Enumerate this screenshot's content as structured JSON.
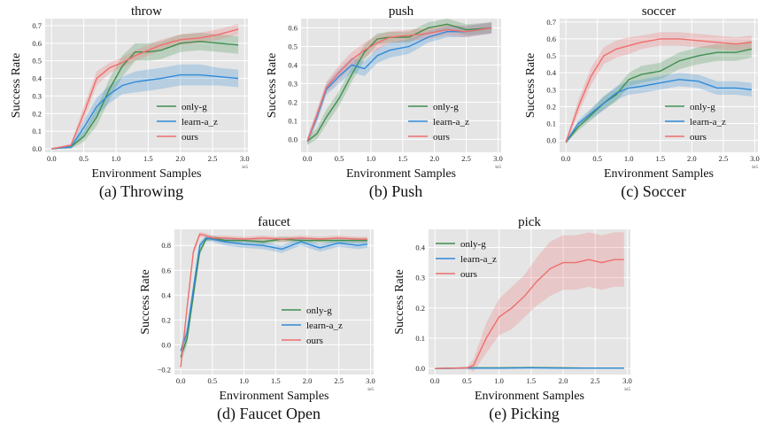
{
  "figure": {
    "colors": {
      "only-g": "#3f8f4f",
      "learn-a_z": "#2f8ad8",
      "ours": "#ef6e6e",
      "plot_bg": "#e5e5e5",
      "grid": "#ffffff"
    }
  },
  "chart_data": [
    {
      "type": "line",
      "title": "throw",
      "caption": "(a) Throwing",
      "xlabel": "Environment Samples",
      "ylabel": "Success Rate",
      "x_multiplier": "1e5",
      "xlim": [
        -0.1,
        3.05
      ],
      "ylim": [
        -0.02,
        0.74
      ],
      "xticks": [
        0.0,
        0.5,
        1.0,
        1.5,
        2.0,
        2.5,
        3.0
      ],
      "yticks": [
        0.0,
        0.1,
        0.2,
        0.3,
        0.4,
        0.5,
        0.6,
        0.7
      ],
      "legend": "lower-right",
      "grid": true,
      "series": [
        {
          "name": "only-g",
          "x": [
            0,
            0.3,
            0.5,
            0.7,
            0.9,
            1.1,
            1.3,
            1.5,
            1.7,
            2.0,
            2.3,
            2.6,
            2.9
          ],
          "y": [
            0,
            0.01,
            0.07,
            0.18,
            0.34,
            0.47,
            0.55,
            0.55,
            0.56,
            0.6,
            0.61,
            0.6,
            0.59
          ],
          "band": [
            0,
            0.01,
            0.03,
            0.05,
            0.06,
            0.06,
            0.05,
            0.05,
            0.05,
            0.05,
            0.05,
            0.05,
            0.05
          ]
        },
        {
          "name": "learn-a_z",
          "x": [
            0,
            0.3,
            0.5,
            0.7,
            0.9,
            1.1,
            1.3,
            1.5,
            1.7,
            2.0,
            2.3,
            2.6,
            2.9
          ],
          "y": [
            0,
            0.01,
            0.12,
            0.24,
            0.31,
            0.36,
            0.38,
            0.39,
            0.4,
            0.42,
            0.42,
            0.41,
            0.4
          ],
          "band": [
            0,
            0.01,
            0.04,
            0.05,
            0.05,
            0.05,
            0.06,
            0.06,
            0.06,
            0.06,
            0.06,
            0.05,
            0.05
          ]
        },
        {
          "name": "ours",
          "x": [
            0,
            0.3,
            0.5,
            0.7,
            0.9,
            1.1,
            1.3,
            1.5,
            1.7,
            2.0,
            2.3,
            2.6,
            2.9
          ],
          "y": [
            0,
            0.02,
            0.2,
            0.4,
            0.46,
            0.49,
            0.53,
            0.56,
            0.59,
            0.62,
            0.63,
            0.65,
            0.68
          ],
          "band": [
            0,
            0.01,
            0.04,
            0.04,
            0.03,
            0.03,
            0.03,
            0.03,
            0.03,
            0.03,
            0.03,
            0.03,
            0.03
          ]
        }
      ]
    },
    {
      "type": "line",
      "title": "push",
      "caption": "(b) Push",
      "xlabel": "Environment Samples",
      "ylabel": "Success Rate",
      "x_multiplier": "1e5",
      "xlim": [
        -0.1,
        3.05
      ],
      "ylim": [
        -0.07,
        0.65
      ],
      "xticks": [
        0.0,
        0.5,
        1.0,
        1.5,
        2.0,
        2.5,
        3.0
      ],
      "yticks": [
        0.0,
        0.1,
        0.2,
        0.3,
        0.4,
        0.5,
        0.6
      ],
      "legend": "lower-right",
      "grid": true,
      "series": [
        {
          "name": "only-g",
          "x": [
            0,
            0.15,
            0.3,
            0.5,
            0.7,
            0.9,
            1.1,
            1.3,
            1.6,
            1.9,
            2.2,
            2.5,
            2.9
          ],
          "y": [
            -0.01,
            0.03,
            0.12,
            0.22,
            0.35,
            0.47,
            0.54,
            0.55,
            0.55,
            0.6,
            0.62,
            0.59,
            0.6
          ],
          "band": [
            0.02,
            0.03,
            0.04,
            0.04,
            0.04,
            0.04,
            0.03,
            0.03,
            0.03,
            0.03,
            0.03,
            0.03,
            0.03
          ]
        },
        {
          "name": "learn-a_z",
          "x": [
            0,
            0.15,
            0.3,
            0.5,
            0.7,
            0.9,
            1.1,
            1.3,
            1.6,
            1.9,
            2.2,
            2.5,
            2.9
          ],
          "y": [
            -0.01,
            0.12,
            0.27,
            0.34,
            0.4,
            0.38,
            0.45,
            0.48,
            0.5,
            0.55,
            0.58,
            0.58,
            0.6
          ],
          "band": [
            0.02,
            0.03,
            0.03,
            0.04,
            0.04,
            0.04,
            0.04,
            0.04,
            0.04,
            0.03,
            0.03,
            0.03,
            0.03
          ]
        },
        {
          "name": "ours",
          "x": [
            0,
            0.15,
            0.3,
            0.5,
            0.7,
            0.9,
            1.1,
            1.3,
            1.6,
            1.9,
            2.2,
            2.5,
            2.9
          ],
          "y": [
            -0.01,
            0.13,
            0.28,
            0.36,
            0.43,
            0.48,
            0.52,
            0.55,
            0.56,
            0.57,
            0.59,
            0.58,
            0.6
          ],
          "band": [
            0.02,
            0.03,
            0.03,
            0.04,
            0.04,
            0.04,
            0.04,
            0.03,
            0.03,
            0.03,
            0.03,
            0.03,
            0.03
          ]
        }
      ]
    },
    {
      "type": "line",
      "title": "soccer",
      "caption": "(c) Soccer",
      "xlabel": "Environment Samples",
      "ylabel": "Success Rate",
      "x_multiplier": "1e5",
      "xlim": [
        -0.1,
        3.05
      ],
      "ylim": [
        -0.07,
        0.72
      ],
      "xticks": [
        0.0,
        0.5,
        1.0,
        1.5,
        2.0,
        2.5,
        3.0
      ],
      "yticks": [
        0.0,
        0.1,
        0.2,
        0.3,
        0.4,
        0.5,
        0.6,
        0.7
      ],
      "legend": "lower-right",
      "grid": true,
      "series": [
        {
          "name": "only-g",
          "x": [
            0,
            0.2,
            0.4,
            0.6,
            0.8,
            1.0,
            1.2,
            1.5,
            1.8,
            2.1,
            2.4,
            2.7,
            2.95
          ],
          "y": [
            -0.01,
            0.08,
            0.15,
            0.22,
            0.27,
            0.36,
            0.39,
            0.41,
            0.47,
            0.5,
            0.52,
            0.52,
            0.54
          ],
          "band": [
            0.01,
            0.02,
            0.03,
            0.04,
            0.04,
            0.04,
            0.05,
            0.05,
            0.05,
            0.05,
            0.05,
            0.05,
            0.05
          ]
        },
        {
          "name": "learn-a_z",
          "x": [
            0,
            0.2,
            0.4,
            0.6,
            0.8,
            1.0,
            1.2,
            1.5,
            1.8,
            2.1,
            2.4,
            2.7,
            2.95
          ],
          "y": [
            -0.01,
            0.1,
            0.16,
            0.22,
            0.28,
            0.31,
            0.32,
            0.34,
            0.36,
            0.35,
            0.31,
            0.31,
            0.3
          ],
          "band": [
            0.01,
            0.02,
            0.03,
            0.04,
            0.04,
            0.04,
            0.04,
            0.04,
            0.04,
            0.04,
            0.04,
            0.04,
            0.04
          ]
        },
        {
          "name": "ours",
          "x": [
            0,
            0.2,
            0.4,
            0.6,
            0.8,
            1.0,
            1.2,
            1.5,
            1.8,
            2.1,
            2.4,
            2.7,
            2.95
          ],
          "y": [
            -0.01,
            0.2,
            0.38,
            0.5,
            0.54,
            0.56,
            0.58,
            0.6,
            0.6,
            0.59,
            0.58,
            0.57,
            0.58
          ],
          "band": [
            0.01,
            0.04,
            0.05,
            0.05,
            0.05,
            0.05,
            0.04,
            0.04,
            0.04,
            0.04,
            0.04,
            0.04,
            0.04
          ]
        }
      ]
    },
    {
      "type": "line",
      "title": "faucet",
      "caption": "(d) Faucet Open",
      "xlabel": "Environment Samples",
      "ylabel": "Success Rate",
      "x_multiplier": "1e5",
      "xlim": [
        -0.1,
        3.05
      ],
      "ylim": [
        -0.24,
        0.93
      ],
      "xticks": [
        0.0,
        0.5,
        1.0,
        1.5,
        2.0,
        2.5,
        3.0
      ],
      "yticks": [
        -0.2,
        0.0,
        0.2,
        0.4,
        0.6,
        0.8
      ],
      "legend": "lower-right",
      "grid": true,
      "series": [
        {
          "name": "only-g",
          "x": [
            0,
            0.1,
            0.2,
            0.3,
            0.4,
            0.5,
            0.7,
            1.0,
            1.3,
            1.6,
            1.9,
            2.2,
            2.5,
            2.8,
            2.95
          ],
          "y": [
            -0.1,
            0.05,
            0.4,
            0.75,
            0.85,
            0.86,
            0.84,
            0.84,
            0.83,
            0.85,
            0.84,
            0.84,
            0.84,
            0.84,
            0.84
          ],
          "band": [
            0.05,
            0.05,
            0.05,
            0.03,
            0.02,
            0.02,
            0.02,
            0.02,
            0.02,
            0.02,
            0.02,
            0.02,
            0.02,
            0.02,
            0.02
          ]
        },
        {
          "name": "learn-a_z",
          "x": [
            0,
            0.1,
            0.2,
            0.3,
            0.4,
            0.5,
            0.7,
            1.0,
            1.3,
            1.6,
            1.9,
            2.2,
            2.5,
            2.8,
            2.95
          ],
          "y": [
            -0.05,
            0.1,
            0.45,
            0.8,
            0.86,
            0.85,
            0.83,
            0.81,
            0.8,
            0.77,
            0.83,
            0.78,
            0.82,
            0.8,
            0.81
          ],
          "band": [
            0.05,
            0.05,
            0.05,
            0.03,
            0.02,
            0.02,
            0.03,
            0.03,
            0.03,
            0.03,
            0.03,
            0.03,
            0.03,
            0.03,
            0.03
          ]
        },
        {
          "name": "ours",
          "x": [
            0,
            0.1,
            0.2,
            0.3,
            0.4,
            0.5,
            0.7,
            1.0,
            1.3,
            1.6,
            1.9,
            2.2,
            2.5,
            2.8,
            2.95
          ],
          "y": [
            -0.18,
            0.3,
            0.75,
            0.89,
            0.88,
            0.86,
            0.86,
            0.85,
            0.86,
            0.85,
            0.86,
            0.85,
            0.86,
            0.85,
            0.85
          ],
          "band": [
            0.04,
            0.04,
            0.03,
            0.02,
            0.02,
            0.02,
            0.02,
            0.02,
            0.02,
            0.02,
            0.02,
            0.02,
            0.02,
            0.02,
            0.02
          ]
        }
      ]
    },
    {
      "type": "line",
      "title": "pick",
      "caption": "(e) Picking",
      "xlabel": "Environment Samples",
      "ylabel": "Success Rate",
      "x_multiplier": "1e5",
      "xlim": [
        -0.1,
        3.05
      ],
      "ylim": [
        -0.02,
        0.46
      ],
      "xticks": [
        0.0,
        0.5,
        1.0,
        1.5,
        2.0,
        2.5,
        3.0
      ],
      "yticks": [
        0.0,
        0.1,
        0.2,
        0.3,
        0.4
      ],
      "legend": "upper-left",
      "grid": true,
      "series": [
        {
          "name": "only-g",
          "x": [
            0,
            0.5,
            1.0,
            1.5,
            2.0,
            2.5,
            2.95
          ],
          "y": [
            0,
            0.002,
            0.002,
            0.003,
            0.002,
            0.001,
            0.001
          ],
          "band": [
            0,
            0.002,
            0.002,
            0.002,
            0.002,
            0.002,
            0.002
          ]
        },
        {
          "name": "learn-a_z",
          "x": [
            0,
            0.5,
            1.0,
            1.5,
            2.0,
            2.5,
            2.95
          ],
          "y": [
            0,
            0.001,
            0.001,
            0.002,
            0.001,
            0.001,
            0.001
          ],
          "band": [
            0,
            0.001,
            0.001,
            0.001,
            0.001,
            0.001,
            0.001
          ]
        },
        {
          "name": "ours",
          "x": [
            0,
            0.5,
            0.6,
            0.8,
            1.0,
            1.2,
            1.4,
            1.6,
            1.8,
            2.0,
            2.2,
            2.4,
            2.6,
            2.8,
            2.95
          ],
          "y": [
            0,
            0.002,
            0.01,
            0.1,
            0.17,
            0.2,
            0.24,
            0.29,
            0.33,
            0.35,
            0.35,
            0.36,
            0.35,
            0.36,
            0.36
          ],
          "band": [
            0,
            0.002,
            0.02,
            0.05,
            0.06,
            0.07,
            0.07,
            0.08,
            0.09,
            0.09,
            0.09,
            0.09,
            0.09,
            0.09,
            0.09
          ]
        }
      ]
    }
  ]
}
